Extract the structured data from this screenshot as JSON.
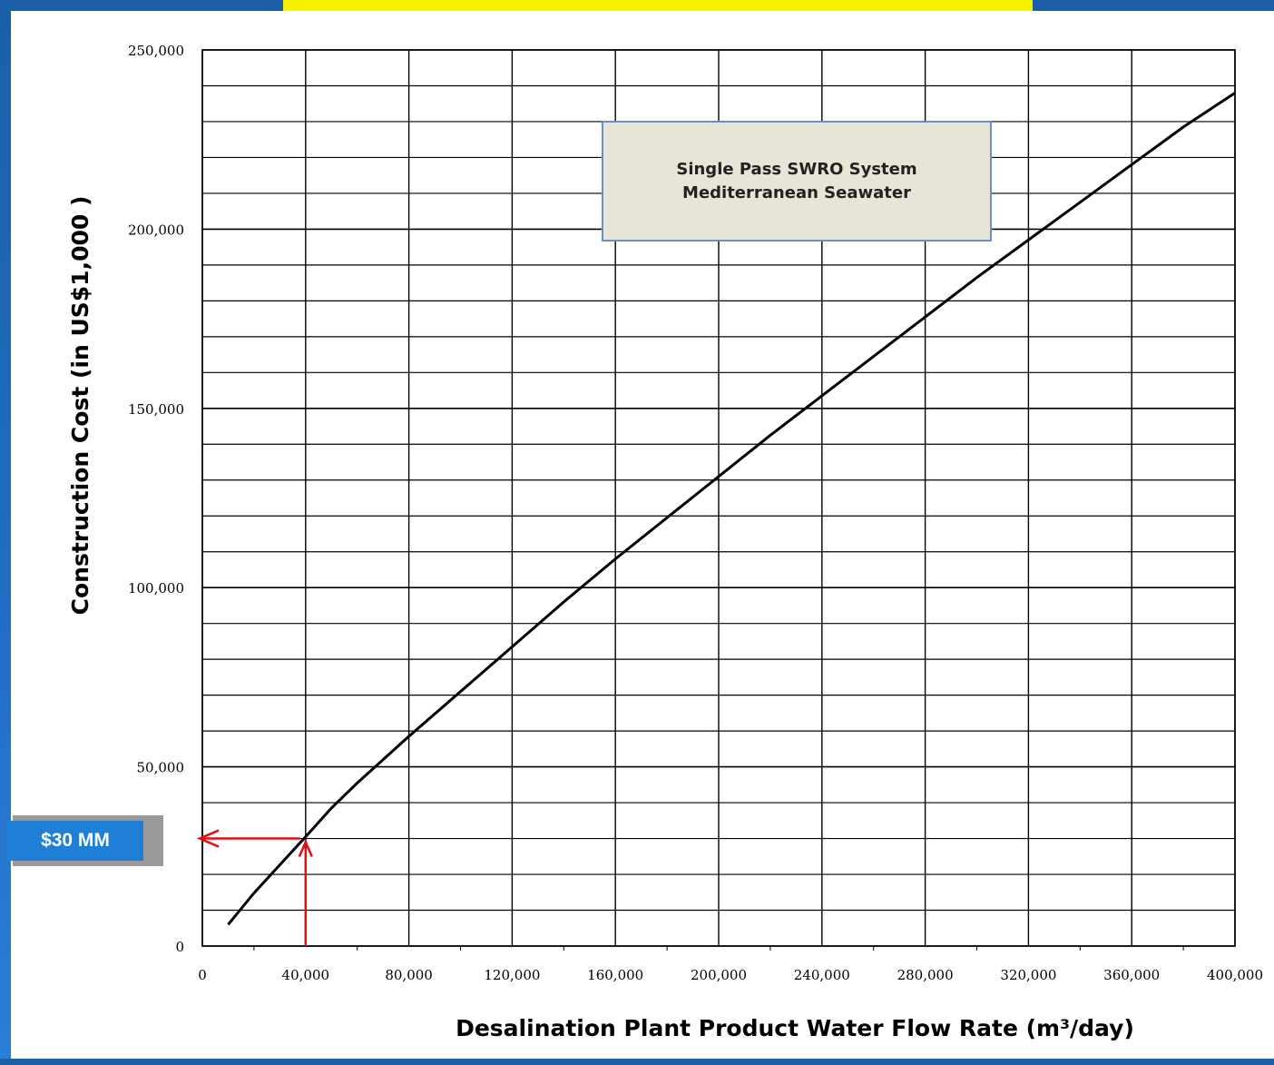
{
  "badge": {
    "label": "$30 MM"
  },
  "annotation": {
    "line1": "Single Pass SWRO System",
    "line2": "Mediterranean Seawater"
  },
  "colors": {
    "frame": "#1a5fa8",
    "badge": "#1f7fd6",
    "arrow": "#e01010",
    "title_strip": "#f5f200",
    "curve": "#000000"
  },
  "chart_data": {
    "type": "line",
    "xlabel": "Desalination Plant Product Water Flow Rate (m³/day)",
    "ylabel": "Construction Cost  (in  US$1,000 )",
    "xlim": [
      0,
      400000
    ],
    "ylim": [
      0,
      250000
    ],
    "x_ticks": [
      "0",
      "40,000",
      "80,000",
      "120,000",
      "160,000",
      "200,000",
      "240,000",
      "280,000",
      "320,000",
      "360,000",
      "400,000"
    ],
    "y_ticks": [
      "0",
      "50,000",
      "100,000",
      "150,000",
      "200,000",
      "250,000"
    ],
    "grid": true,
    "series": [
      {
        "x": [
          10000,
          20000,
          40000,
          50000,
          60000,
          80000,
          100000,
          120000,
          140000,
          160000,
          180000,
          200000,
          220000,
          240000,
          260000,
          280000,
          300000,
          320000,
          340000,
          360000,
          380000,
          400000
        ],
        "y": [
          6000,
          14800,
          30500,
          38500,
          45500,
          58500,
          71000,
          83500,
          96000,
          108000,
          119500,
          131000,
          142500,
          153500,
          164500,
          175500,
          186500,
          197000,
          207500,
          218000,
          228500,
          238000
        ]
      }
    ],
    "markers": [
      {
        "x": 40000,
        "y": 30000,
        "label": "$30 MM"
      }
    ]
  }
}
